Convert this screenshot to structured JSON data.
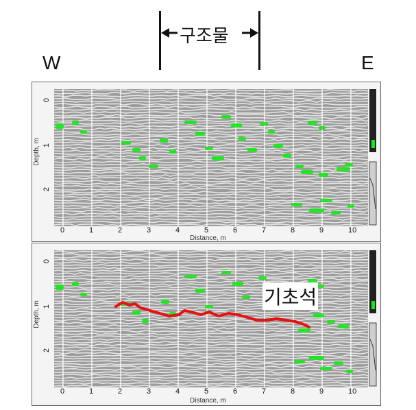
{
  "labels": {
    "west": "W",
    "east": "E",
    "structure": "구조물",
    "foundation_stone": "기초석"
  },
  "axes": {
    "x_title": "Distance, m",
    "y_title": "Depth, m",
    "x_ticks": [
      "0",
      "1",
      "2",
      "3",
      "4",
      "5",
      "6",
      "7",
      "8",
      "9",
      "10"
    ],
    "y_ticks": [
      "0",
      "1",
      "2"
    ]
  },
  "colors": {
    "highlight": "#19e619",
    "interface_line": "#e81010",
    "grid": "#ffffff"
  }
}
